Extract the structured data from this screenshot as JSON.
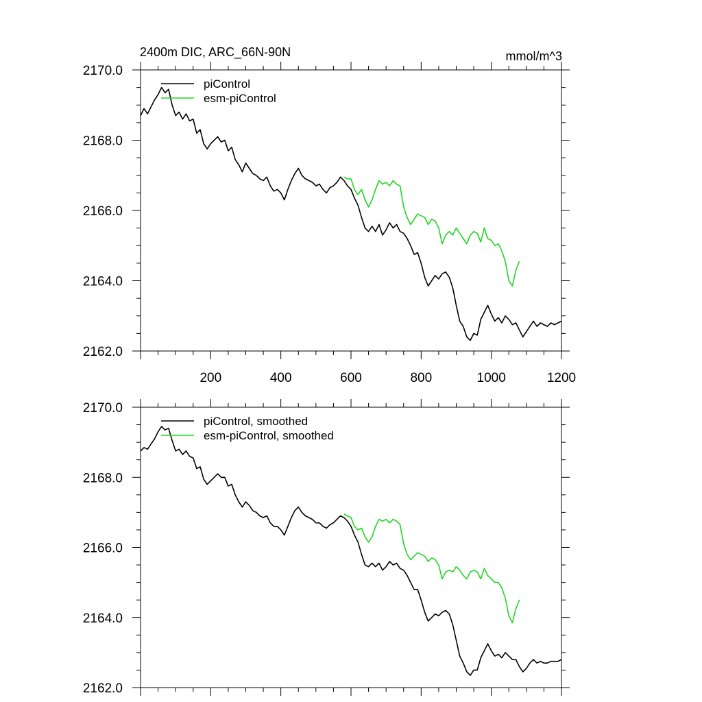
{
  "chart_data": [
    {
      "type": "line",
      "title": "2400m DIC, ARC_66N-90N",
      "units": "mmol/m^3",
      "xlim": [
        0,
        1200
      ],
      "ylim": [
        2162.0,
        2170.0
      ],
      "x_ticks": [
        200,
        400,
        600,
        800,
        1000,
        1200
      ],
      "y_ticks": [
        "2162.0",
        "2164.0",
        "2166.0",
        "2168.0",
        "2170.0"
      ],
      "legend_position": "top-left",
      "series": [
        {
          "name": "piControl",
          "color": "#000000",
          "x": [
            0,
            10,
            20,
            30,
            40,
            50,
            60,
            70,
            80,
            90,
            100,
            110,
            120,
            130,
            140,
            150,
            160,
            170,
            180,
            190,
            200,
            210,
            220,
            230,
            240,
            250,
            260,
            270,
            280,
            290,
            300,
            310,
            320,
            330,
            340,
            350,
            360,
            370,
            380,
            390,
            400,
            410,
            420,
            430,
            440,
            450,
            460,
            470,
            480,
            490,
            500,
            510,
            520,
            530,
            540,
            550,
            560,
            570,
            580,
            590,
            600,
            610,
            620,
            630,
            640,
            650,
            660,
            670,
            680,
            690,
            700,
            710,
            720,
            730,
            740,
            750,
            760,
            770,
            780,
            790,
            800,
            810,
            820,
            830,
            840,
            850,
            860,
            870,
            880,
            890,
            900,
            910,
            920,
            930,
            940,
            950,
            960,
            970,
            980,
            990,
            1000,
            1010,
            1020,
            1030,
            1040,
            1050,
            1060,
            1070,
            1080,
            1090,
            1100,
            1110,
            1120,
            1130,
            1140,
            1150,
            1160,
            1170,
            1180,
            1190,
            1200
          ],
          "values": [
            2168.7,
            2168.9,
            2168.75,
            2168.95,
            2169.15,
            2169.3,
            2169.5,
            2169.35,
            2169.45,
            2169.0,
            2168.7,
            2168.8,
            2168.6,
            2168.75,
            2168.55,
            2168.6,
            2168.2,
            2168.3,
            2167.9,
            2167.75,
            2167.9,
            2168.0,
            2168.1,
            2167.95,
            2168.0,
            2167.7,
            2167.8,
            2167.45,
            2167.3,
            2167.1,
            2167.35,
            2167.2,
            2167.05,
            2167.0,
            2166.9,
            2166.85,
            2166.95,
            2166.7,
            2166.55,
            2166.6,
            2166.5,
            2166.3,
            2166.6,
            2166.85,
            2167.05,
            2167.2,
            2167.0,
            2166.9,
            2166.85,
            2166.8,
            2166.7,
            2166.75,
            2166.6,
            2166.5,
            2166.65,
            2166.7,
            2166.8,
            2166.95,
            2166.85,
            2166.7,
            2166.6,
            2166.35,
            2166.15,
            2165.8,
            2165.5,
            2165.4,
            2165.55,
            2165.4,
            2165.6,
            2165.3,
            2165.45,
            2165.65,
            2165.5,
            2165.6,
            2165.4,
            2165.35,
            2165.2,
            2165.0,
            2164.75,
            2164.8,
            2164.5,
            2164.1,
            2163.85,
            2164.0,
            2164.15,
            2164.05,
            2164.2,
            2164.25,
            2164.1,
            2163.8,
            2163.3,
            2162.85,
            2162.7,
            2162.4,
            2162.3,
            2162.5,
            2162.45,
            2162.9,
            2163.1,
            2163.3,
            2163.05,
            2162.85,
            2162.95,
            2162.8,
            2163.0,
            2162.9,
            2162.75,
            2162.8,
            2162.6,
            2162.4,
            2162.55,
            2162.7,
            2162.85,
            2162.7,
            2162.8,
            2162.75,
            2162.7,
            2162.8,
            2162.75,
            2162.8,
            2162.85
          ]
        },
        {
          "name": "esm-piControl",
          "color": "#1fd51f",
          "x": [
            580,
            590,
            600,
            610,
            620,
            630,
            640,
            650,
            660,
            670,
            680,
            690,
            700,
            710,
            720,
            730,
            740,
            750,
            760,
            770,
            780,
            790,
            800,
            810,
            820,
            830,
            840,
            850,
            860,
            870,
            880,
            890,
            900,
            910,
            920,
            930,
            940,
            950,
            960,
            970,
            980,
            990,
            1000,
            1010,
            1020,
            1030,
            1040,
            1050,
            1060,
            1070,
            1080
          ],
          "values": [
            2166.95,
            2166.9,
            2166.9,
            2166.6,
            2166.45,
            2166.6,
            2166.3,
            2166.1,
            2166.3,
            2166.6,
            2166.85,
            2166.75,
            2166.8,
            2166.7,
            2166.85,
            2166.75,
            2166.7,
            2166.1,
            2165.8,
            2165.6,
            2165.75,
            2165.9,
            2165.85,
            2165.8,
            2165.6,
            2165.75,
            2165.7,
            2165.5,
            2165.05,
            2165.3,
            2165.4,
            2165.3,
            2165.5,
            2165.35,
            2165.2,
            2165.05,
            2165.3,
            2165.4,
            2165.35,
            2165.1,
            2165.5,
            2165.2,
            2165.15,
            2165.0,
            2165.05,
            2164.85,
            2164.55,
            2164.0,
            2163.85,
            2164.3,
            2164.55
          ]
        }
      ]
    },
    {
      "type": "line",
      "xlim": [
        0,
        1200
      ],
      "ylim": [
        2162.0,
        2170.0
      ],
      "y_ticks": [
        "2162.0",
        "2164.0",
        "2166.0",
        "2168.0",
        "2170.0"
      ],
      "legend_position": "top-left",
      "series": [
        {
          "name": "piControl, smoothed",
          "color": "#000000",
          "x": [
            0,
            10,
            20,
            30,
            40,
            50,
            60,
            70,
            80,
            90,
            100,
            110,
            120,
            130,
            140,
            150,
            160,
            170,
            180,
            190,
            200,
            210,
            220,
            230,
            240,
            250,
            260,
            270,
            280,
            290,
            300,
            310,
            320,
            330,
            340,
            350,
            360,
            370,
            380,
            390,
            400,
            410,
            420,
            430,
            440,
            450,
            460,
            470,
            480,
            490,
            500,
            510,
            520,
            530,
            540,
            550,
            560,
            570,
            580,
            590,
            600,
            610,
            620,
            630,
            640,
            650,
            660,
            670,
            680,
            690,
            700,
            710,
            720,
            730,
            740,
            750,
            760,
            770,
            780,
            790,
            800,
            810,
            820,
            830,
            840,
            850,
            860,
            870,
            880,
            890,
            900,
            910,
            920,
            930,
            940,
            950,
            960,
            970,
            980,
            990,
            1000,
            1010,
            1020,
            1030,
            1040,
            1050,
            1060,
            1070,
            1080,
            1090,
            1100,
            1110,
            1120,
            1130,
            1140,
            1150,
            1160,
            1170,
            1180,
            1190,
            1200
          ],
          "values": [
            2168.75,
            2168.85,
            2168.8,
            2168.95,
            2169.1,
            2169.3,
            2169.45,
            2169.35,
            2169.4,
            2169.05,
            2168.75,
            2168.8,
            2168.65,
            2168.75,
            2168.6,
            2168.55,
            2168.25,
            2168.3,
            2167.95,
            2167.8,
            2167.9,
            2168.0,
            2168.1,
            2168.0,
            2168.0,
            2167.75,
            2167.8,
            2167.5,
            2167.3,
            2167.15,
            2167.3,
            2167.2,
            2167.05,
            2167.0,
            2166.9,
            2166.85,
            2166.9,
            2166.7,
            2166.6,
            2166.6,
            2166.5,
            2166.35,
            2166.6,
            2166.85,
            2167.05,
            2167.15,
            2167.0,
            2166.9,
            2166.85,
            2166.8,
            2166.7,
            2166.7,
            2166.6,
            2166.55,
            2166.65,
            2166.7,
            2166.8,
            2166.9,
            2166.85,
            2166.75,
            2166.6,
            2166.35,
            2166.15,
            2165.8,
            2165.5,
            2165.45,
            2165.55,
            2165.45,
            2165.55,
            2165.35,
            2165.45,
            2165.6,
            2165.5,
            2165.55,
            2165.4,
            2165.35,
            2165.2,
            2165.0,
            2164.8,
            2164.8,
            2164.5,
            2164.15,
            2163.9,
            2164.0,
            2164.1,
            2164.05,
            2164.15,
            2164.2,
            2164.1,
            2163.8,
            2163.35,
            2162.9,
            2162.7,
            2162.45,
            2162.35,
            2162.5,
            2162.5,
            2162.85,
            2163.05,
            2163.25,
            2163.05,
            2162.9,
            2162.95,
            2162.85,
            2163.0,
            2162.9,
            2162.8,
            2162.8,
            2162.6,
            2162.45,
            2162.55,
            2162.7,
            2162.8,
            2162.7,
            2162.75,
            2162.7,
            2162.7,
            2162.75,
            2162.75,
            2162.75,
            2162.8
          ]
        },
        {
          "name": "esm-piControl, smoothed",
          "color": "#1fd51f",
          "x": [
            580,
            590,
            600,
            610,
            620,
            630,
            640,
            650,
            660,
            670,
            680,
            690,
            700,
            710,
            720,
            730,
            740,
            750,
            760,
            770,
            780,
            790,
            800,
            810,
            820,
            830,
            840,
            850,
            860,
            870,
            880,
            890,
            900,
            910,
            920,
            930,
            940,
            950,
            960,
            970,
            980,
            990,
            1000,
            1010,
            1020,
            1030,
            1040,
            1050,
            1060,
            1070,
            1080
          ],
          "values": [
            2166.95,
            2166.9,
            2166.85,
            2166.6,
            2166.5,
            2166.55,
            2166.3,
            2166.15,
            2166.3,
            2166.6,
            2166.8,
            2166.75,
            2166.8,
            2166.7,
            2166.8,
            2166.75,
            2166.65,
            2166.1,
            2165.8,
            2165.65,
            2165.75,
            2165.85,
            2165.8,
            2165.75,
            2165.6,
            2165.7,
            2165.65,
            2165.5,
            2165.1,
            2165.3,
            2165.35,
            2165.3,
            2165.45,
            2165.35,
            2165.2,
            2165.1,
            2165.3,
            2165.35,
            2165.3,
            2165.1,
            2165.4,
            2165.2,
            2165.1,
            2165.0,
            2165.0,
            2164.85,
            2164.55,
            2164.05,
            2163.85,
            2164.25,
            2164.5
          ]
        }
      ]
    }
  ]
}
